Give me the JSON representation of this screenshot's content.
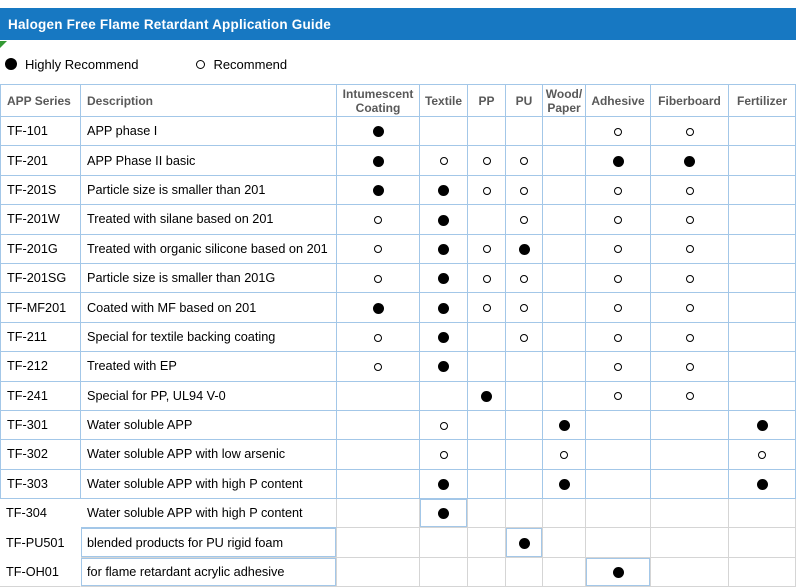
{
  "title": "Halogen Free Flame Retardant Application Guide",
  "legend": {
    "highly_recommend_label": "Highly Recommend",
    "recommend_label": "Recommend"
  },
  "mark_code_key": {
    "0": "none",
    "1": "recommend",
    "2": "highly_recommend"
  },
  "colors": {
    "title_bar": "#1778C2",
    "table_border_blue": "#A3C7E8",
    "table_border_gray": "#D5D5D5",
    "header_text": "#595959",
    "marker": "#000000",
    "corner_flag_green": "#339933"
  },
  "table": {
    "columns": [
      {
        "label": "APP Series",
        "type": "text"
      },
      {
        "label": "Description",
        "type": "text"
      },
      {
        "label": "Intumescent Coating",
        "type": "mark"
      },
      {
        "label": "Textile",
        "type": "mark"
      },
      {
        "label": "PP",
        "type": "mark"
      },
      {
        "label": "PU",
        "type": "mark"
      },
      {
        "label": "Wood/Paper",
        "type": "mark"
      },
      {
        "label": "Adhesive",
        "type": "mark"
      },
      {
        "label": "Fiberboard",
        "type": "mark"
      },
      {
        "label": "Fertilizer",
        "type": "mark"
      }
    ],
    "rows": [
      {
        "series": "TF-101",
        "description": "APP phase I",
        "marks": [
          2,
          0,
          0,
          0,
          0,
          1,
          1,
          0
        ]
      },
      {
        "series": "TF-201",
        "description": "APP Phase II basic",
        "marks": [
          2,
          1,
          1,
          1,
          0,
          2,
          2,
          0
        ]
      },
      {
        "series": "TF-201S",
        "description": "Particle size is smaller than 201",
        "marks": [
          2,
          2,
          1,
          1,
          0,
          1,
          1,
          0
        ]
      },
      {
        "series": "TF-201W",
        "description": "Treated with silane based on 201",
        "marks": [
          1,
          2,
          0,
          1,
          0,
          1,
          1,
          0
        ]
      },
      {
        "series": "TF-201G",
        "description": "Treated with organic silicone based on 201",
        "marks": [
          1,
          2,
          1,
          2,
          0,
          1,
          1,
          0
        ]
      },
      {
        "series": "TF-201SG",
        "description": "Particle size is smaller than 201G",
        "marks": [
          1,
          2,
          1,
          1,
          0,
          1,
          1,
          0
        ]
      },
      {
        "series": "TF-MF201",
        "description": "Coated with MF based on 201",
        "marks": [
          2,
          2,
          1,
          1,
          0,
          1,
          1,
          0
        ]
      },
      {
        "series": "TF-211",
        "description": "Special for textile backing coating",
        "marks": [
          1,
          2,
          0,
          1,
          0,
          1,
          1,
          0
        ]
      },
      {
        "series": "TF-212",
        "description": "Treated with EP",
        "marks": [
          1,
          2,
          0,
          0,
          0,
          1,
          1,
          0
        ]
      },
      {
        "series": "TF-241",
        "description": "Special for PP, UL94 V-0",
        "marks": [
          0,
          0,
          2,
          0,
          0,
          1,
          1,
          0
        ]
      },
      {
        "series": "TF-301",
        "description": "Water soluble APP",
        "marks": [
          0,
          1,
          0,
          0,
          2,
          0,
          0,
          2
        ]
      },
      {
        "series": "TF-302",
        "description": "Water soluble APP with low arsenic",
        "marks": [
          0,
          1,
          0,
          0,
          1,
          0,
          0,
          1
        ]
      },
      {
        "series": "TF-303",
        "description": "Water soluble APP with high P content",
        "marks": [
          0,
          2,
          0,
          0,
          2,
          0,
          0,
          2
        ]
      },
      {
        "series": "TF-304",
        "description": "Water soluble APP with high P content",
        "marks": [
          0,
          2,
          0,
          0,
          0,
          0,
          0,
          0
        ]
      },
      {
        "series": "TF-PU501",
        "description": "blended products for PU rigid foam",
        "marks": [
          0,
          0,
          0,
          2,
          0,
          0,
          0,
          0
        ]
      },
      {
        "series": "TF-OH01",
        "description": "for flame retardant acrylic adhesive",
        "marks": [
          0,
          0,
          0,
          0,
          0,
          2,
          0,
          0
        ]
      }
    ]
  }
}
